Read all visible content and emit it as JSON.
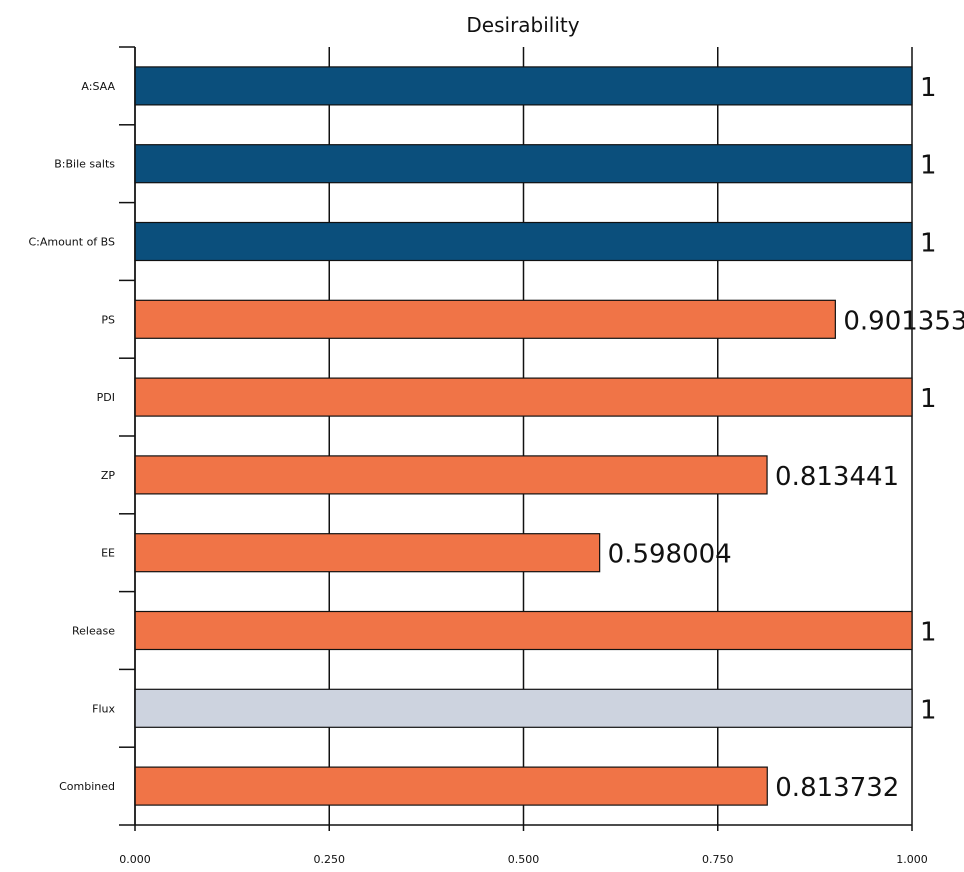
{
  "chart_data": {
    "type": "bar",
    "orientation": "horizontal",
    "title": "Desirability",
    "xlabel": "",
    "ylabel": "",
    "xlim": [
      0,
      1
    ],
    "grid": true,
    "x_ticks": [
      0,
      0.25,
      0.5,
      0.75,
      1
    ],
    "x_tick_labels": [
      "0.000",
      "0.250",
      "0.500",
      "0.750",
      "1.000"
    ],
    "categories": [
      "A:SAA",
      "B:Bile salts",
      "C:Amount of BS",
      "PS",
      "PDI",
      "ZP",
      "EE",
      "Release",
      "Flux",
      "Combined"
    ],
    "values": [
      1,
      1,
      1,
      0.901353,
      1,
      0.813441,
      0.598004,
      1,
      1,
      0.813732
    ],
    "value_labels": [
      "1",
      "1",
      "1",
      "0.901353",
      "1",
      "0.813441",
      "0.598004",
      "1",
      "1",
      "0.813732"
    ],
    "bar_colors": [
      "#0b4f7c",
      "#0b4f7c",
      "#0b4f7c",
      "#f07447",
      "#f07447",
      "#f07447",
      "#f07447",
      "#f07447",
      "#cdd3df",
      "#f07447"
    ]
  }
}
